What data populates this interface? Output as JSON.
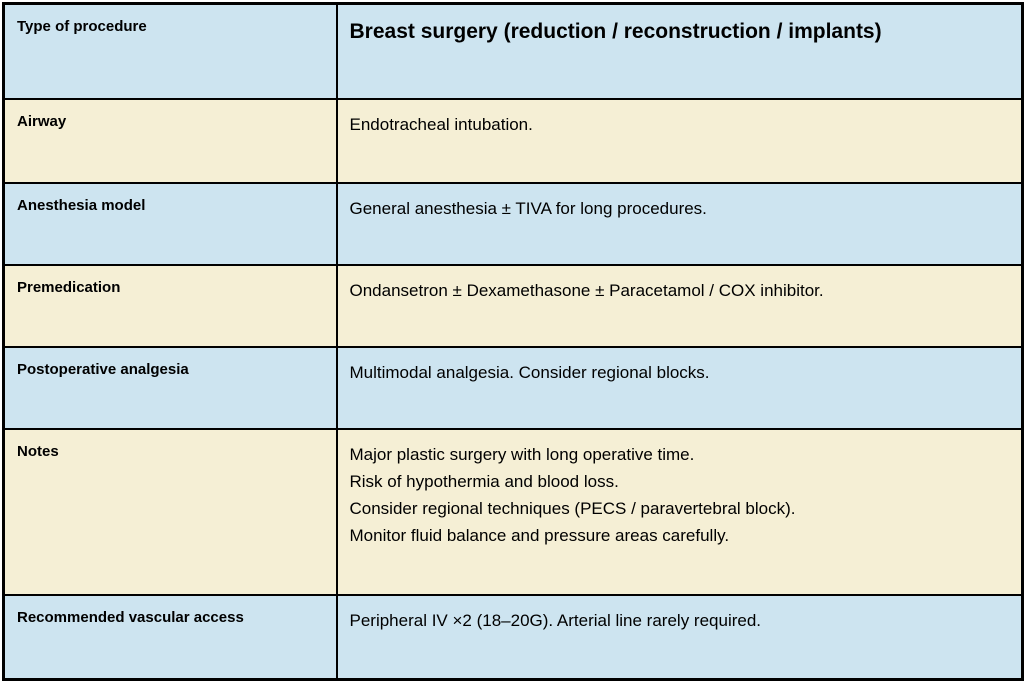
{
  "table": {
    "colors": {
      "row_blue": "#cde4f0",
      "row_cream": "#f5efd5",
      "border": "#000000",
      "text": "#000000"
    },
    "rows": [
      {
        "label": "Type of procedure",
        "value": "Breast surgery (reduction / reconstruction / implants)",
        "bg": "blue",
        "is_header": true
      },
      {
        "label": "Airway",
        "value": "Endotracheal intubation.",
        "bg": "cream"
      },
      {
        "label": "Anesthesia model",
        "value": "General anesthesia ± TIVA for long procedures.",
        "bg": "blue"
      },
      {
        "label": "Premedication",
        "value": "Ondansetron ± Dexamethasone ± Paracetamol / COX inhibitor.",
        "bg": "cream"
      },
      {
        "label": "Postoperative analgesia",
        "value": "Multimodal analgesia. Consider regional blocks.",
        "bg": "blue"
      },
      {
        "label": "Notes",
        "lines": [
          "Major plastic surgery with long operative time.",
          "Risk of hypothermia and blood loss.",
          "Consider regional techniques (PECS / paravertebral block).",
          "Monitor fluid balance and pressure areas carefully."
        ],
        "bg": "cream"
      },
      {
        "label": "Recommended vascular access",
        "value": "Peripheral IV ×2 (18–20G). Arterial line rarely required.",
        "bg": "blue"
      }
    ]
  }
}
